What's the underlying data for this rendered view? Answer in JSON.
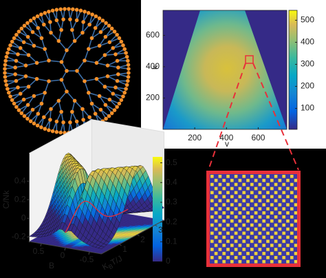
{
  "chart_data": [
    {
      "type": "heatmap",
      "xlabel": "v",
      "ylabel": "k",
      "xlim": [
        0,
        780
      ],
      "ylim": [
        0,
        760
      ],
      "xticks": [
        200,
        400,
        600
      ],
      "yticks": [
        200,
        400,
        600
      ],
      "colorbar": {
        "clim": [
          5,
          545
        ],
        "ticks": [
          100,
          200,
          300,
          400,
          500
        ]
      }
    },
    {
      "type": "surface",
      "zlabel": "C/Nk",
      "xlabel": "B",
      "ylabel_parts": [
        "K",
        "B",
        "T/J"
      ],
      "xlim": [
        -0.75,
        0.75
      ],
      "ylim": [
        0,
        3.5
      ],
      "zlim": [
        -0.25,
        0.7
      ],
      "xticks": [
        0.5,
        0,
        -0.5
      ],
      "yticks": [
        1,
        2,
        3
      ],
      "zticks": [
        -0.2,
        0,
        0.2,
        0.4
      ],
      "colorbar": {
        "clim": [
          0,
          0.53
        ],
        "ticks": [
          0,
          0.1,
          0.2,
          0.3,
          0.4,
          0.5
        ]
      }
    }
  ]
}
